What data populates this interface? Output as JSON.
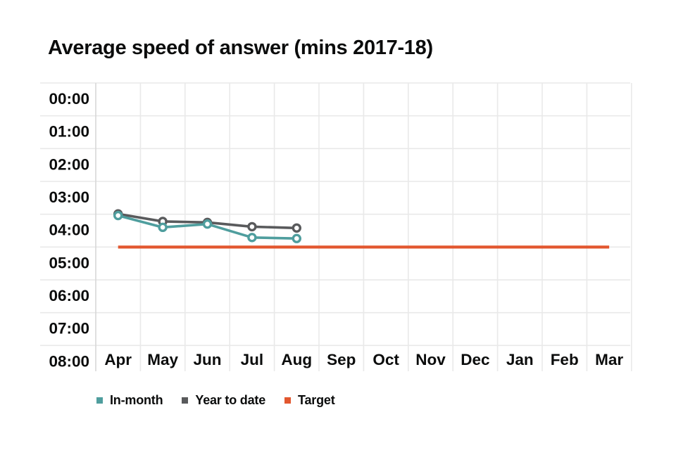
{
  "title": "Average speed of answer (mins 2017-18)",
  "legend": {
    "items": [
      {
        "label": "In-month",
        "color": "#4F9E9E"
      },
      {
        "label": "Year to date",
        "color": "#595A5C"
      },
      {
        "label": "Target",
        "color": "#E2572F"
      }
    ]
  },
  "colors": {
    "text": "#0b0c0c",
    "gridline": "#e9e9e9",
    "axis_line": "#d7d7d7",
    "background": "#ffffff"
  },
  "chart_data": {
    "type": "line",
    "title": "Average speed of answer (mins 2017-18)",
    "x_categories": [
      "Apr",
      "May",
      "Jun",
      "Jul",
      "Aug",
      "Sep",
      "Oct",
      "Nov",
      "Dec",
      "Jan",
      "Feb",
      "Mar"
    ],
    "y_axis": {
      "tick_labels": [
        "00:00",
        "01:00",
        "02:00",
        "03:00",
        "04:00",
        "05:00",
        "06:00",
        "07:00",
        "08:00"
      ],
      "unit": "minutes (mm:ss)",
      "min_mins": 0,
      "max_mins": 8,
      "orientation": "00:00 at top, 08:00 at bottom",
      "grid": true
    },
    "series": [
      {
        "name": "In-month",
        "color": "#4F9E9E",
        "marker": "open-circle",
        "values_mins": [
          4.04,
          4.4,
          4.3,
          4.71,
          4.74
        ],
        "values_mmss": [
          "04:02",
          "04:24",
          "04:18",
          "04:43",
          "04:44"
        ]
      },
      {
        "name": "Year to date",
        "color": "#595A5C",
        "marker": "open-circle",
        "values_mins": [
          3.99,
          4.22,
          4.25,
          4.38,
          4.42
        ],
        "values_mmss": [
          "04:00",
          "04:13",
          "04:15",
          "04:23",
          "04:25"
        ]
      }
    ],
    "target": {
      "name": "Target",
      "color": "#E2572F",
      "value_mins": 5.0,
      "value_mmss": "05:00",
      "spans_months": [
        "Apr",
        "Mar"
      ]
    },
    "legend_position": "bottom-left"
  }
}
